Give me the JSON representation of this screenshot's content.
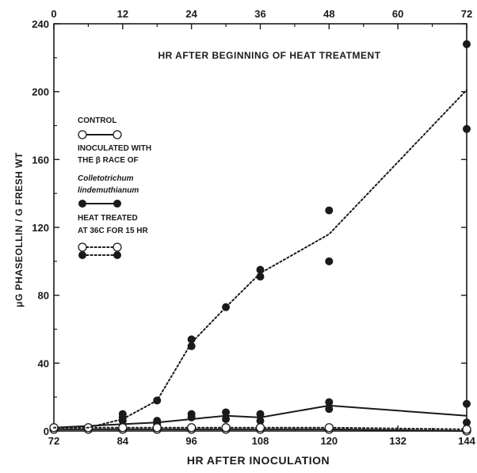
{
  "chart_data": {
    "type": "line",
    "title": "",
    "top_axis_title": "HR AFTER BEGINNING OF HEAT TREATMENT",
    "xlabel": "HR AFTER INOCULATION",
    "ylabel": "μG PHASEOLLIN / G FRESH WT",
    "xlim": [
      72,
      144
    ],
    "ylim": [
      0,
      240
    ],
    "x_ticks": [
      72,
      84,
      96,
      108,
      120,
      132,
      144
    ],
    "y_ticks": [
      0,
      40,
      80,
      120,
      160,
      200,
      240
    ],
    "top_xlim": [
      0,
      72
    ],
    "top_x_ticks": [
      0,
      12,
      24,
      36,
      48,
      60,
      72
    ],
    "grid": false,
    "legend": {
      "placement": "left-center",
      "control_label": "CONTROL",
      "inoculated_lines": [
        "INOCULATED WITH",
        "THE β RACE OF"
      ],
      "inoculated_species": [
        "Colletotrichum",
        "lindemuthianum"
      ],
      "heat_lines": [
        "HEAT TREATED",
        "AT 36C FOR 15 HR"
      ]
    },
    "series": [
      {
        "key": "control",
        "marker": "open",
        "line": "solid",
        "points": [
          [
            72,
            1
          ],
          [
            78,
            1
          ],
          [
            84,
            1
          ],
          [
            90,
            1
          ],
          [
            96,
            1
          ],
          [
            102,
            1
          ],
          [
            108,
            1
          ],
          [
            120,
            1
          ],
          [
            144,
            0
          ]
        ],
        "line_x": [
          72,
          78,
          84,
          90,
          96,
          102,
          108,
          120,
          144
        ],
        "line_y": [
          1,
          1,
          1,
          1,
          1,
          1,
          1,
          1,
          0
        ]
      },
      {
        "key": "inoculated",
        "marker": "filled",
        "line": "solid",
        "points": [
          [
            72,
            2
          ],
          [
            84,
            6
          ],
          [
            84,
            8
          ],
          [
            90,
            4
          ],
          [
            90,
            6
          ],
          [
            96,
            8
          ],
          [
            96,
            10
          ],
          [
            102,
            7
          ],
          [
            102,
            11
          ],
          [
            108,
            6
          ],
          [
            108,
            10
          ],
          [
            120,
            13
          ],
          [
            120,
            17
          ],
          [
            144,
            5
          ],
          [
            144,
            16
          ]
        ],
        "line_x": [
          72,
          78,
          84,
          90,
          96,
          102,
          108,
          120,
          144
        ],
        "line_y": [
          2,
          3,
          4,
          5,
          7,
          9,
          8,
          15,
          9
        ]
      },
      {
        "key": "heat_control",
        "marker": "open",
        "line": "dotted",
        "points": [
          [
            72,
            2
          ],
          [
            78,
            2
          ],
          [
            84,
            2
          ],
          [
            90,
            2
          ],
          [
            96,
            2
          ],
          [
            102,
            2
          ],
          [
            108,
            2
          ],
          [
            120,
            2
          ],
          [
            144,
            1
          ]
        ],
        "line_x": [
          72,
          78,
          84,
          90,
          96,
          102,
          108,
          120,
          144
        ],
        "line_y": [
          2,
          2,
          2,
          2,
          2,
          2,
          2,
          2,
          1
        ]
      },
      {
        "key": "heat_inoculated",
        "marker": "filled",
        "line": "dotted",
        "points": [
          [
            84,
            10
          ],
          [
            90,
            18
          ],
          [
            96,
            54
          ],
          [
            96,
            50
          ],
          [
            102,
            73
          ],
          [
            108,
            95
          ],
          [
            108,
            91
          ],
          [
            120,
            130
          ],
          [
            120,
            100
          ],
          [
            144,
            228
          ],
          [
            144,
            178
          ]
        ],
        "line_x": [
          72,
          78,
          84,
          90,
          96,
          102,
          108,
          120,
          144
        ],
        "line_y": [
          2,
          2,
          7,
          18,
          52,
          73,
          93,
          116,
          201
        ]
      }
    ]
  }
}
